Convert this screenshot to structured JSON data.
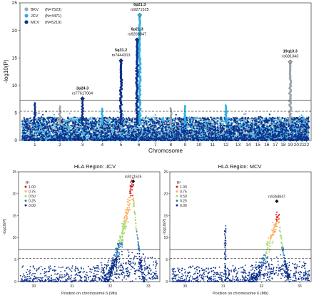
{
  "chart_data": [
    {
      "type": "scatter",
      "subtype": "manhattan",
      "xlabel": "Chromosome",
      "ylabel": "-log10(P)",
      "ylim": [
        0,
        25
      ],
      "yticks": [
        0,
        5,
        10,
        15,
        20,
        25
      ],
      "chromosomes": [
        "1",
        "2",
        "3",
        "4",
        "5",
        "6",
        "7",
        "8",
        "9",
        "10",
        "11",
        "12",
        "13",
        "14",
        "15",
        "16",
        "17",
        "18",
        "19",
        "20",
        "21",
        "22"
      ],
      "significance_line": 7.3,
      "suggestive_line": 5.3,
      "grid": false,
      "legend_position": "top-left",
      "series": [
        {
          "name": "BKV",
          "n_label": "(N=7523)",
          "color": "#9ea5ae"
        },
        {
          "name": "JCV",
          "n_label": "(N=4471)",
          "color": "#2fb0e6"
        },
        {
          "name": "MCV",
          "n_label": "(N=5219)",
          "color": "#0d2f8a"
        }
      ],
      "annotations": [
        {
          "locus": "3p24.3",
          "snp": "rs77617064",
          "chromosome": "3",
          "y": 7.6
        },
        {
          "locus": "5q31.2",
          "snp": "rs7444313",
          "chromosome": "5",
          "y": 14.5
        },
        {
          "locus": "6p21.3",
          "snp": "rs9268847",
          "chromosome": "6",
          "y": 18.3
        },
        {
          "locus": "6p21.3",
          "snp": "rs9271525",
          "chromosome": "6",
          "y": 22.8
        },
        {
          "locus": "19q13.3",
          "snp": "rs681343",
          "chromosome": "19",
          "y": 14.3
        }
      ],
      "peaks": [
        {
          "chromosome": "1",
          "series": "MCV",
          "y": 6.8
        },
        {
          "chromosome": "2",
          "series": "BKV",
          "y": 6.2
        },
        {
          "chromosome": "3",
          "series": "MCV",
          "y": 7.6
        },
        {
          "chromosome": "4",
          "series": "JCV",
          "y": 5.8
        },
        {
          "chromosome": "5",
          "series": "MCV",
          "y": 14.5
        },
        {
          "chromosome": "6",
          "series": "JCV",
          "y": 22.8
        },
        {
          "chromosome": "6",
          "series": "MCV",
          "y": 18.3
        },
        {
          "chromosome": "8",
          "series": "BKV",
          "y": 5.9
        },
        {
          "chromosome": "9",
          "series": "JCV",
          "y": 6.3
        },
        {
          "chromosome": "12",
          "series": "JCV",
          "y": 6.4
        },
        {
          "chromosome": "19",
          "series": "BKV",
          "y": 14.3
        }
      ]
    },
    {
      "type": "scatter",
      "subtype": "regional",
      "title": "HLA Region: JCV",
      "xlabel": "Position on chromosome 6 (Mb)",
      "ylabel": "-log10(P)",
      "xlim": [
        29.6,
        33.3
      ],
      "xticks": [
        30,
        31,
        32,
        33
      ],
      "ylim": [
        0,
        25
      ],
      "yticks": [
        0,
        5,
        10,
        15,
        20,
        25
      ],
      "significance_line": 7.3,
      "suggestive_line": 5.3,
      "legend_title": "R²",
      "legend_position": "top-left",
      "ld_bins": [
        {
          "label": "1.00",
          "color": "#d7191c"
        },
        {
          "label": "0.75",
          "color": "#fdae61"
        },
        {
          "label": "0.50",
          "color": "#a6d96a"
        },
        {
          "label": "0.25",
          "color": "#2c7bb6"
        },
        {
          "label": "0.00",
          "color": "#0d2f8a"
        }
      ],
      "lead_snp": {
        "label": "rs9271525",
        "x": 32.6,
        "y": 22.8
      }
    },
    {
      "type": "scatter",
      "subtype": "regional",
      "title": "HLA Region: MCV",
      "xlabel": "Position on chromosome 6 (Mb)",
      "ylabel": "-log10(P)",
      "xlim": [
        29.6,
        33.3
      ],
      "xticks": [
        30,
        31,
        32,
        33
      ],
      "ylim": [
        0,
        25
      ],
      "yticks": [
        0,
        5,
        10,
        15,
        20,
        25
      ],
      "significance_line": 7.3,
      "suggestive_line": 5.3,
      "legend_title": "R²",
      "legend_position": "top-left",
      "ld_bins": [
        {
          "label": "1.00",
          "color": "#d7191c"
        },
        {
          "label": "0.75",
          "color": "#fdae61"
        },
        {
          "label": "0.50",
          "color": "#a6d96a"
        },
        {
          "label": "0.25",
          "color": "#2c7bb6"
        },
        {
          "label": "0.00",
          "color": "#0d2f8a"
        }
      ],
      "lead_snp": {
        "label": "rs9268847",
        "x": 32.4,
        "y": 18.3
      }
    }
  ]
}
